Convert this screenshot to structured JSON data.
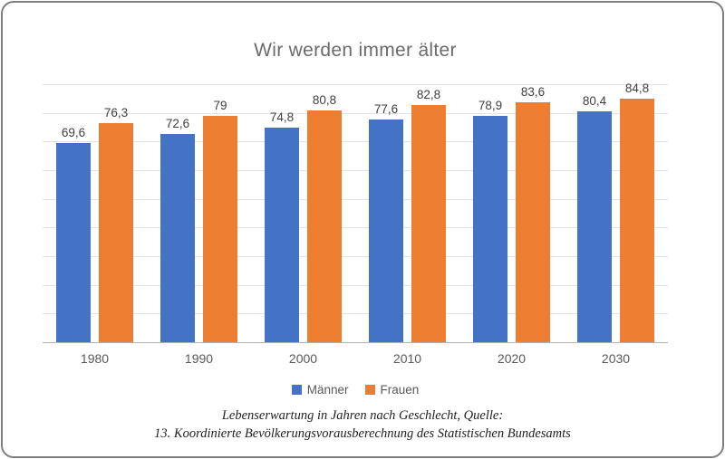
{
  "title": "Wir werden immer älter",
  "chart_data": {
    "type": "bar",
    "title": "Wir werden immer älter",
    "categories": [
      "1980",
      "1990",
      "2000",
      "2010",
      "2020",
      "2030"
    ],
    "series": [
      {
        "name": "Männer",
        "color": "#4472C4",
        "values": [
          69.6,
          72.6,
          74.8,
          77.6,
          78.9,
          80.4
        ],
        "labels": [
          "69,6",
          "72,6",
          "74,8",
          "77,6",
          "78,9",
          "80,4"
        ]
      },
      {
        "name": "Frauen",
        "color": "#ED7D31",
        "values": [
          76.3,
          79,
          80.8,
          82.8,
          83.6,
          84.8
        ],
        "labels": [
          "76,3",
          "79",
          "80,8",
          "82,8",
          "83,6",
          "84,8"
        ]
      }
    ],
    "xlabel": "",
    "ylabel": "",
    "ylim": [
      0,
      90
    ],
    "grid_step": 10,
    "grid": true,
    "y_axis_labels_visible": false,
    "legend_position": "bottom"
  },
  "caption": {
    "line1": "Lebenserwartung in Jahren nach Geschlecht, Quelle:",
    "line2": "13. Koordinierte Bevölkerungsvorausberechnung des Statistischen Bundesamts"
  },
  "colors": {
    "title_text": "#6b6b6b",
    "data_label": "#404040",
    "axis_label": "#595959",
    "gridline": "#e2e2e2",
    "axis_line": "#b3b3b3",
    "frame_border": "#7f7f7f",
    "background": "#ffffff",
    "caption_text": "#1f1f1f"
  }
}
